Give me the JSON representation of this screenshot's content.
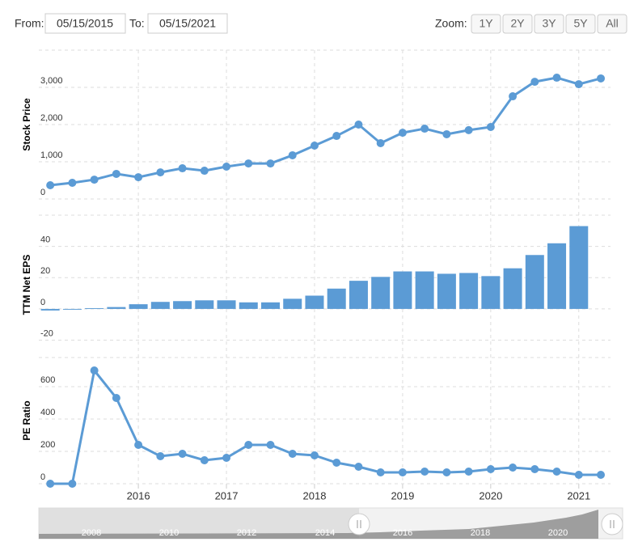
{
  "controls": {
    "from_label": "From:",
    "from_value": "05/15/2015",
    "to_label": "To:",
    "to_value": "05/15/2021",
    "zoom_label": "Zoom:",
    "zoom_buttons": [
      "1Y",
      "2Y",
      "3Y",
      "5Y",
      "All"
    ]
  },
  "chart_data": [
    {
      "type": "line",
      "y_label": "Stock Price",
      "color": "#5b9bd5",
      "x": [
        2015.0,
        2015.25,
        2015.5,
        2015.75,
        2016.0,
        2016.25,
        2016.5,
        2016.75,
        2017.0,
        2017.25,
        2017.5,
        2017.75,
        2018.0,
        2018.25,
        2018.5,
        2018.75,
        2019.0,
        2019.25,
        2019.5,
        2019.75,
        2020.0,
        2020.25,
        2020.5,
        2020.75,
        2021.0,
        2021.25
      ],
      "values": [
        370,
        435,
        520,
        675,
        585,
        715,
        825,
        760,
        870,
        955,
        955,
        1175,
        1435,
        1695,
        2000,
        1500,
        1780,
        1890,
        1740,
        1850,
        1935,
        2760,
        3150,
        3260,
        3085,
        3240
      ],
      "xlim": [
        2014.87,
        2021.36
      ],
      "ylim": [
        0,
        4000
      ],
      "yticks": [
        0,
        {
          "value": 1000,
          "label": "1,000"
        },
        {
          "value": 2000,
          "label": "2,000"
        },
        {
          "value": 3000,
          "label": "3,000"
        }
      ]
    },
    {
      "type": "bar",
      "y_label": "TTM Net EPS",
      "color": "#5b9bd5",
      "x": [
        2015.0,
        2015.25,
        2015.5,
        2015.75,
        2016.0,
        2016.25,
        2016.5,
        2016.75,
        2017.0,
        2017.25,
        2017.5,
        2017.75,
        2018.0,
        2018.25,
        2018.5,
        2018.75,
        2019.0,
        2019.25,
        2019.5,
        2019.75,
        2020.0,
        2020.25,
        2020.5,
        2020.75,
        2021.0,
        2021.25
      ],
      "values": [
        -1,
        -0.5,
        0.5,
        1.2,
        3,
        4.5,
        5,
        5.5,
        5.5,
        4.2,
        4.2,
        6.5,
        8.5,
        13,
        18,
        20.5,
        24,
        24,
        22.5,
        23,
        21,
        26,
        34.5,
        42,
        53,
        null
      ],
      "xlim": [
        2014.87,
        2021.36
      ],
      "ylim": [
        -28,
        60
      ],
      "yticks": [
        -20,
        0,
        20,
        40
      ]
    },
    {
      "type": "line",
      "y_label": "PE Ratio",
      "color": "#5b9bd5",
      "x": [
        2015.0,
        2015.25,
        2015.5,
        2015.75,
        2016.0,
        2016.25,
        2016.5,
        2016.75,
        2017.0,
        2017.25,
        2017.5,
        2017.75,
        2018.0,
        2018.25,
        2018.5,
        2018.75,
        2019.0,
        2019.25,
        2019.5,
        2019.75,
        2020.0,
        2020.25,
        2020.5,
        2020.75,
        2021.0,
        2021.25
      ],
      "values": [
        0,
        0,
        700,
        530,
        240,
        170,
        185,
        145,
        160,
        240,
        240,
        185,
        175,
        130,
        105,
        70,
        70,
        75,
        70,
        75,
        90,
        100,
        90,
        75,
        55,
        55
      ],
      "xlim": [
        2014.87,
        2021.36
      ],
      "ylim": [
        0,
        800
      ],
      "yticks": [
        0,
        200,
        400,
        600
      ],
      "xticks": [
        2016,
        2017,
        2018,
        2019,
        2020,
        2021
      ]
    }
  ],
  "navigator": {
    "labels": [
      "2008",
      "2010",
      "2012",
      "2014",
      "2016",
      "2018",
      "2020"
    ]
  }
}
